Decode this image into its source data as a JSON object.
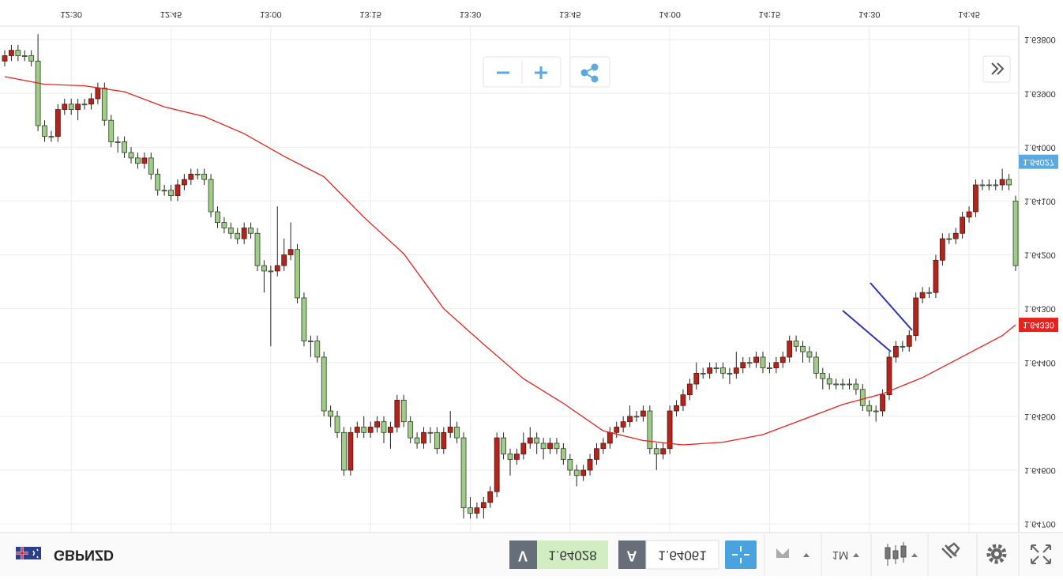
{
  "chart_data": {
    "type": "candlestick",
    "x": [
      "12:20",
      "12:21",
      "12:22",
      "12:23",
      "12:24",
      "12:25",
      "12:26",
      "12:27",
      "12:28",
      "12:29",
      "12:30",
      "12:31",
      "12:32",
      "12:33",
      "12:34",
      "12:35",
      "12:36",
      "12:37",
      "12:38",
      "12:39",
      "12:40",
      "12:41",
      "12:42",
      "12:43",
      "12:44",
      "12:45",
      "12:46",
      "12:47",
      "12:48",
      "12:49",
      "12:50",
      "12:51",
      "12:52",
      "12:53",
      "12:54",
      "12:55",
      "12:56",
      "12:57",
      "12:58",
      "12:59",
      "13:00",
      "13:01",
      "13:02",
      "13:03",
      "13:04",
      "13:05",
      "13:06",
      "13:07",
      "13:08",
      "13:09",
      "13:10",
      "13:11",
      "13:12",
      "13:13",
      "13:14",
      "13:15",
      "13:16",
      "13:17",
      "13:18",
      "13:19",
      "13:20",
      "13:21",
      "13:22",
      "13:23",
      "13:24",
      "13:25",
      "13:26",
      "13:27",
      "13:28",
      "13:29",
      "13:30",
      "13:31",
      "13:32",
      "13:33",
      "13:34",
      "13:35",
      "13:36",
      "13:37",
      "13:38",
      "13:39",
      "13:40",
      "13:41",
      "13:42",
      "13:43",
      "13:44",
      "13:45",
      "13:46",
      "13:47",
      "13:48",
      "13:49",
      "13:50",
      "13:51",
      "13:52",
      "13:53",
      "13:54",
      "13:55",
      "13:56",
      "13:57",
      "13:58",
      "13:59",
      "14:00",
      "14:01",
      "14:02",
      "14:03",
      "14:04",
      "14:05",
      "14:06",
      "14:07",
      "14:08",
      "14:09",
      "14:10",
      "14:11",
      "14:12",
      "14:13",
      "14:14",
      "14:15",
      "14:16",
      "14:17",
      "14:18",
      "14:19",
      "14:20",
      "14:21",
      "14:22",
      "14:23",
      "14:24",
      "14:25",
      "14:26",
      "14:27",
      "14:28",
      "14:29",
      "14:30",
      "14:31",
      "14:32",
      "14:33",
      "14:34",
      "14:35",
      "14:36",
      "14:37",
      "14:38",
      "14:39",
      "14:40",
      "14:41",
      "14:42",
      "14:43",
      "14:44",
      "14:45",
      "14:46",
      "14:47",
      "14:48",
      "14:49",
      "14:50",
      "14:51",
      "14:52"
    ],
    "ohlc": [
      [
        1.6384,
        1.6385,
        1.6382,
        1.6383
      ],
      [
        1.6383,
        1.6384,
        1.6381,
        1.6382
      ],
      [
        1.6382,
        1.6384,
        1.6381,
        1.6383
      ],
      [
        1.6383,
        1.6384,
        1.6382,
        1.6383
      ],
      [
        1.6383,
        1.6385,
        1.6382,
        1.6384
      ],
      [
        1.6384,
        1.6397,
        1.6379,
        1.6396
      ],
      [
        1.6396,
        1.6399,
        1.6395,
        1.6398
      ],
      [
        1.6398,
        1.6399,
        1.6397,
        1.6398
      ],
      [
        1.6398,
        1.6399,
        1.6392,
        1.6393
      ],
      [
        1.6393,
        1.6394,
        1.6391,
        1.6392
      ],
      [
        1.6392,
        1.6394,
        1.6391,
        1.6393
      ],
      [
        1.6393,
        1.6395,
        1.6391,
        1.6392
      ],
      [
        1.6392,
        1.6393,
        1.6391,
        1.6392
      ],
      [
        1.6392,
        1.6393,
        1.639,
        1.6391
      ],
      [
        1.6391,
        1.6392,
        1.6388,
        1.6389
      ],
      [
        1.6389,
        1.6396,
        1.6388,
        1.6395
      ],
      [
        1.6395,
        1.64,
        1.6394,
        1.6399
      ],
      [
        1.6399,
        1.6401,
        1.6398,
        1.6399
      ],
      [
        1.6399,
        1.6402,
        1.6398,
        1.6401
      ],
      [
        1.6401,
        1.6403,
        1.64,
        1.6402
      ],
      [
        1.6402,
        1.6404,
        1.6401,
        1.6403
      ],
      [
        1.6403,
        1.6404,
        1.6401,
        1.6402
      ],
      [
        1.6402,
        1.6406,
        1.6401,
        1.6405
      ],
      [
        1.6405,
        1.6409,
        1.6404,
        1.6408
      ],
      [
        1.6408,
        1.6409,
        1.6407,
        1.6408
      ],
      [
        1.6408,
        1.641,
        1.6407,
        1.6409
      ],
      [
        1.6409,
        1.641,
        1.6406,
        1.6407
      ],
      [
        1.6407,
        1.6408,
        1.6405,
        1.6406
      ],
      [
        1.6406,
        1.6407,
        1.6404,
        1.6405
      ],
      [
        1.6405,
        1.6406,
        1.6404,
        1.6405
      ],
      [
        1.6405,
        1.6407,
        1.6404,
        1.6406
      ],
      [
        1.6406,
        1.6413,
        1.6405,
        1.6412
      ],
      [
        1.6412,
        1.6415,
        1.6411,
        1.6414
      ],
      [
        1.6414,
        1.6416,
        1.6413,
        1.6415
      ],
      [
        1.6415,
        1.6417,
        1.6414,
        1.6416
      ],
      [
        1.6416,
        1.6418,
        1.6415,
        1.6417
      ],
      [
        1.6417,
        1.6418,
        1.6414,
        1.6415
      ],
      [
        1.6415,
        1.6417,
        1.6414,
        1.6416
      ],
      [
        1.6416,
        1.6423,
        1.6415,
        1.6422
      ],
      [
        1.6422,
        1.6427,
        1.6421,
        1.6423
      ],
      [
        1.6423,
        1.6437,
        1.6422,
        1.6423
      ],
      [
        1.6423,
        1.6424,
        1.6411,
        1.6422
      ],
      [
        1.6422,
        1.6423,
        1.6417,
        1.642
      ],
      [
        1.642,
        1.6421,
        1.6414,
        1.6419
      ],
      [
        1.6419,
        1.6429,
        1.6418,
        1.6428
      ],
      [
        1.6428,
        1.6437,
        1.6427,
        1.6436
      ],
      [
        1.6436,
        1.6439,
        1.6435,
        1.6436
      ],
      [
        1.6436,
        1.644,
        1.6435,
        1.6439
      ],
      [
        1.6439,
        1.645,
        1.6438,
        1.6449
      ],
      [
        1.6449,
        1.6452,
        1.6448,
        1.645
      ],
      [
        1.645,
        1.6454,
        1.6449,
        1.6453
      ],
      [
        1.6453,
        1.6461,
        1.6452,
        1.646
      ],
      [
        1.646,
        1.6461,
        1.6452,
        1.6453
      ],
      [
        1.6453,
        1.6454,
        1.6451,
        1.6452
      ],
      [
        1.6452,
        1.6454,
        1.645,
        1.6453
      ],
      [
        1.6453,
        1.6454,
        1.6451,
        1.6452
      ],
      [
        1.6452,
        1.6453,
        1.645,
        1.6451
      ],
      [
        1.6451,
        1.6455,
        1.645,
        1.6453
      ],
      [
        1.6453,
        1.6456,
        1.6451,
        1.6452
      ],
      [
        1.6452,
        1.6453,
        1.6446,
        1.6447
      ],
      [
        1.6447,
        1.6452,
        1.6446,
        1.6451
      ],
      [
        1.6451,
        1.6455,
        1.645,
        1.6454
      ],
      [
        1.6454,
        1.6456,
        1.6453,
        1.6455
      ],
      [
        1.6455,
        1.6456,
        1.6452,
        1.6453
      ],
      [
        1.6453,
        1.6455,
        1.6452,
        1.6453
      ],
      [
        1.6453,
        1.6457,
        1.6452,
        1.6456
      ],
      [
        1.6456,
        1.6457,
        1.6452,
        1.6453
      ],
      [
        1.6453,
        1.6454,
        1.6449,
        1.6452
      ],
      [
        1.6452,
        1.6455,
        1.6451,
        1.6454
      ],
      [
        1.6454,
        1.6469,
        1.6453,
        1.6467
      ],
      [
        1.6467,
        1.6469,
        1.6465,
        1.6468
      ],
      [
        1.6468,
        1.6469,
        1.6466,
        1.6467
      ],
      [
        1.6467,
        1.6469,
        1.6465,
        1.6466
      ],
      [
        1.6466,
        1.6467,
        1.6463,
        1.6464
      ],
      [
        1.6464,
        1.6465,
        1.6453,
        1.6454
      ],
      [
        1.6454,
        1.6458,
        1.6453,
        1.6457
      ],
      [
        1.6457,
        1.6461,
        1.6456,
        1.6458
      ],
      [
        1.6458,
        1.6459,
        1.6456,
        1.6457
      ],
      [
        1.6457,
        1.6458,
        1.6453,
        1.6455
      ],
      [
        1.6455,
        1.6456,
        1.6452,
        1.6454
      ],
      [
        1.6454,
        1.6457,
        1.6453,
        1.6455
      ],
      [
        1.6455,
        1.6458,
        1.6454,
        1.6456
      ],
      [
        1.6456,
        1.6457,
        1.6454,
        1.6455
      ],
      [
        1.6455,
        1.6457,
        1.6454,
        1.6456
      ],
      [
        1.6456,
        1.6459,
        1.6455,
        1.6458
      ],
      [
        1.6458,
        1.6461,
        1.6457,
        1.646
      ],
      [
        1.646,
        1.6463,
        1.6459,
        1.6461
      ],
      [
        1.6461,
        1.6462,
        1.6459,
        1.646
      ],
      [
        1.646,
        1.6461,
        1.6457,
        1.6458
      ],
      [
        1.6458,
        1.6459,
        1.6455,
        1.6456
      ],
      [
        1.6456,
        1.6457,
        1.6454,
        1.6455
      ],
      [
        1.6455,
        1.6456,
        1.6452,
        1.6453
      ],
      [
        1.6453,
        1.6454,
        1.6451,
        1.6452
      ],
      [
        1.6452,
        1.6453,
        1.645,
        1.6451
      ],
      [
        1.6451,
        1.6452,
        1.6448,
        1.645
      ],
      [
        1.645,
        1.6451,
        1.6449,
        1.645
      ],
      [
        1.645,
        1.6451,
        1.6448,
        1.6449
      ],
      [
        1.6449,
        1.6457,
        1.6448,
        1.6456
      ],
      [
        1.6456,
        1.646,
        1.6455,
        1.6457
      ],
      [
        1.6457,
        1.6458,
        1.6455,
        1.6456
      ],
      [
        1.6456,
        1.6457,
        1.6448,
        1.6449
      ],
      [
        1.6449,
        1.645,
        1.6447,
        1.6448
      ],
      [
        1.6448,
        1.6449,
        1.6445,
        1.6446
      ],
      [
        1.6446,
        1.6447,
        1.6443,
        1.6444
      ],
      [
        1.6444,
        1.6445,
        1.644,
        1.6442
      ],
      [
        1.6442,
        1.6443,
        1.6441,
        1.6442
      ],
      [
        1.6442,
        1.6443,
        1.644,
        1.6441
      ],
      [
        1.6441,
        1.6442,
        1.644,
        1.6441
      ],
      [
        1.6441,
        1.6443,
        1.644,
        1.6442
      ],
      [
        1.6442,
        1.6444,
        1.6441,
        1.6442
      ],
      [
        1.6442,
        1.6443,
        1.6438,
        1.6441
      ],
      [
        1.6441,
        1.6442,
        1.6439,
        1.644
      ],
      [
        1.644,
        1.6441,
        1.6439,
        1.644
      ],
      [
        1.644,
        1.6441,
        1.6438,
        1.6439
      ],
      [
        1.6439,
        1.6442,
        1.6438,
        1.6441
      ],
      [
        1.6441,
        1.6442,
        1.644,
        1.6441
      ],
      [
        1.6441,
        1.6442,
        1.6439,
        1.644
      ],
      [
        1.644,
        1.6441,
        1.6438,
        1.6439
      ],
      [
        1.6439,
        1.644,
        1.6435,
        1.6436
      ],
      [
        1.6436,
        1.6438,
        1.6435,
        1.6437
      ],
      [
        1.6437,
        1.644,
        1.6436,
        1.6438
      ],
      [
        1.6438,
        1.644,
        1.6437,
        1.6439
      ],
      [
        1.6439,
        1.6443,
        1.6438,
        1.6442
      ],
      [
        1.6442,
        1.6445,
        1.6441,
        1.6443
      ],
      [
        1.6443,
        1.6445,
        1.6442,
        1.6444
      ],
      [
        1.6444,
        1.6445,
        1.6443,
        1.6444
      ],
      [
        1.6444,
        1.6445,
        1.6443,
        1.6444
      ],
      [
        1.6444,
        1.6445,
        1.6443,
        1.6444
      ],
      [
        1.6444,
        1.6446,
        1.6443,
        1.6445
      ],
      [
        1.6445,
        1.6449,
        1.6444,
        1.6448
      ],
      [
        1.6448,
        1.645,
        1.6447,
        1.6449
      ],
      [
        1.6449,
        1.6451,
        1.6448,
        1.6449
      ],
      [
        1.6449,
        1.645,
        1.6445,
        1.6446
      ],
      [
        1.6446,
        1.6447,
        1.6438,
        1.6439
      ],
      [
        1.6439,
        1.644,
        1.6436,
        1.6437
      ],
      [
        1.6437,
        1.6438,
        1.6436,
        1.6437
      ],
      [
        1.6437,
        1.6438,
        1.6434,
        1.6435
      ],
      [
        1.6435,
        1.6436,
        1.6427,
        1.6428
      ],
      [
        1.6428,
        1.6429,
        1.6426,
        1.6427
      ],
      [
        1.6427,
        1.6428,
        1.6426,
        1.6427
      ],
      [
        1.6427,
        1.6428,
        1.642,
        1.6421
      ],
      [
        1.6421,
        1.6422,
        1.6416,
        1.6417
      ],
      [
        1.6417,
        1.6418,
        1.6416,
        1.6417
      ],
      [
        1.6417,
        1.6418,
        1.6415,
        1.6416
      ],
      [
        1.6416,
        1.6417,
        1.6412,
        1.6413
      ],
      [
        1.6413,
        1.6414,
        1.6411,
        1.6412
      ],
      [
        1.6412,
        1.6413,
        1.6406,
        1.6407
      ],
      [
        1.6407,
        1.6408,
        1.6406,
        1.6407
      ],
      [
        1.6407,
        1.6408,
        1.6406,
        1.6407
      ],
      [
        1.6407,
        1.6408,
        1.6406,
        1.6407
      ],
      [
        1.6407,
        1.6408,
        1.6404,
        1.6406
      ],
      [
        1.6406,
        1.6408,
        1.6405,
        1.6407
      ],
      [
        1.641,
        1.6423,
        1.6409,
        1.6422
      ]
    ],
    "up_color": "#9fcc86",
    "down_color": "#b0261c",
    "ma": {
      "color": "#e8211c",
      "x": [
        "12:20",
        "12:26",
        "12:32",
        "12:38",
        "12:44",
        "12:50",
        "12:56",
        "13:02",
        "13:08",
        "13:14",
        "13:20",
        "13:26",
        "13:32",
        "13:38",
        "13:44",
        "13:50",
        "13:56",
        "14:02",
        "14:08",
        "14:14",
        "14:20",
        "14:26",
        "14:32",
        "14:38",
        "14:44",
        "14:50",
        "14:52"
      ],
      "values": [
        1.63869,
        1.63883,
        1.63886,
        1.63897,
        1.63925,
        1.63943,
        1.63975,
        1.64017,
        1.64055,
        1.6413,
        1.64198,
        1.643,
        1.64366,
        1.6443,
        1.64476,
        1.64527,
        1.64545,
        1.64553,
        1.64548,
        1.64534,
        1.64506,
        1.64478,
        1.64458,
        1.64428,
        1.64389,
        1.6435,
        1.6433
      ]
    },
    "ma_label": {
      "value": 1.6433,
      "label": "1.64330"
    },
    "bid_label": 1.64027,
    "ylim": [
      1.63775,
      1.64716
    ],
    "yticks": [
      {
        "value": 1.638,
        "label": "1.63800"
      },
      {
        "value": 1.639,
        "label": "1.63900"
      },
      {
        "value": 1.64,
        "label": "1.64000"
      },
      {
        "value": 1.641,
        "label": "1.64100"
      },
      {
        "value": 1.642,
        "label": "1.64200"
      },
      {
        "value": 1.643,
        "label": "1.64300"
      },
      {
        "value": 1.644,
        "label": "1.64400"
      },
      {
        "value": 1.645,
        "label": "1.64500"
      },
      {
        "value": 1.646,
        "label": "1.64600"
      },
      {
        "value": 1.647,
        "label": "1.64700"
      }
    ],
    "xticks": [
      "12:30",
      "12:45",
      "13:00",
      "13:15",
      "13:30",
      "13:45",
      "14:00",
      "14:15",
      "14:30",
      "14:45"
    ],
    "grid": true
  },
  "toolbar": {
    "symbol": "GBPNZD",
    "sell": {
      "label": "V",
      "price": 1.64028
    },
    "buy": {
      "label": "A",
      "price": 1.64061
    },
    "timeframe": "1M"
  }
}
